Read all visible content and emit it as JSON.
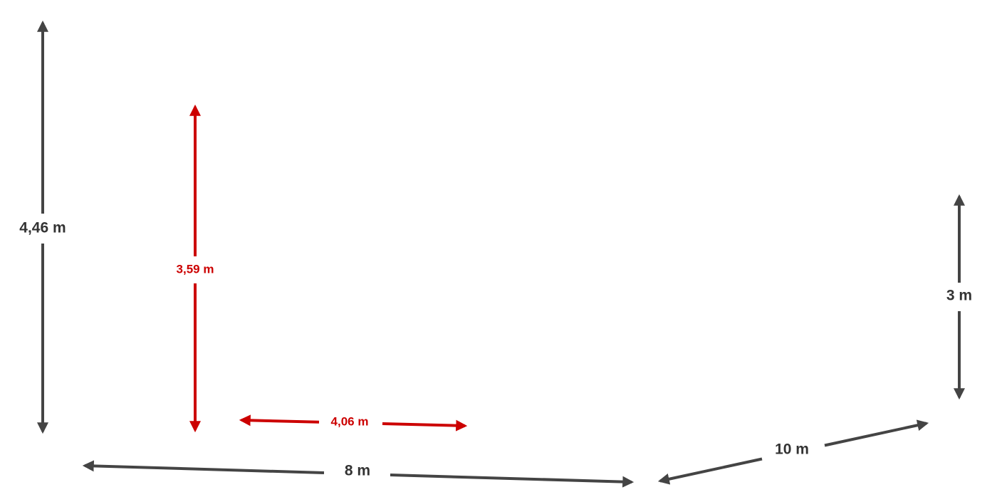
{
  "dimensions": [
    {
      "label": "4,46 m"
    },
    {
      "label": "3,59 m"
    },
    {
      "label": "4,06 m"
    },
    {
      "label": "8 m"
    },
    {
      "label": "10 m"
    },
    {
      "label": "3 m"
    }
  ]
}
